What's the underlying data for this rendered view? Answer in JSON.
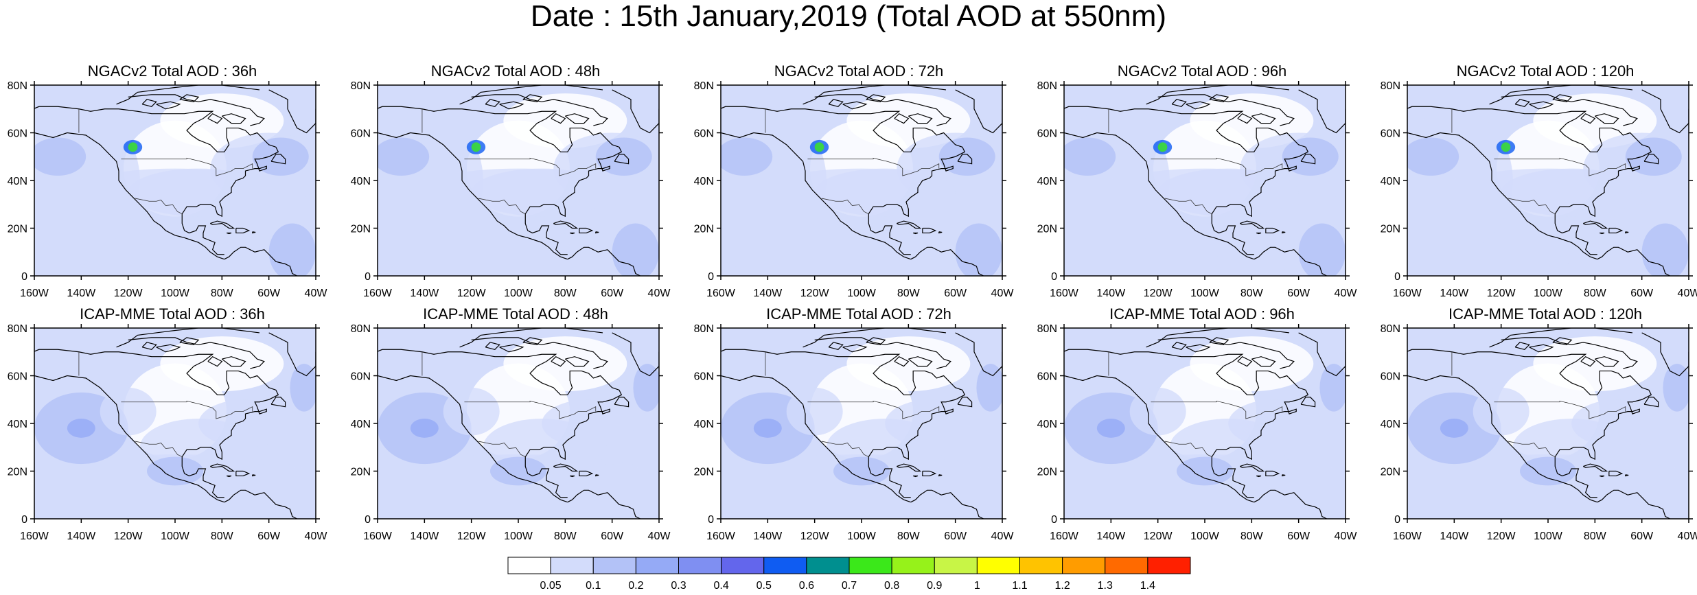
{
  "title": "Date : 15th January,2019 (Total AOD at 550nm)",
  "axes": {
    "x_ticks": [
      "160W",
      "140W",
      "120W",
      "100W",
      "80W",
      "60W",
      "40W"
    ],
    "y_ticks": [
      "80N",
      "60N",
      "40N",
      "20N",
      "0"
    ],
    "lon_range": [
      -160,
      -40
    ],
    "lat_range": [
      0,
      80
    ]
  },
  "panels": [
    {
      "title": "NGACv2 Total AOD : 36h",
      "row": 0,
      "col": 0,
      "model": "ngac"
    },
    {
      "title": "NGACv2 Total AOD : 48h",
      "row": 0,
      "col": 1,
      "model": "ngac"
    },
    {
      "title": "NGACv2 Total AOD : 72h",
      "row": 0,
      "col": 2,
      "model": "ngac"
    },
    {
      "title": "NGACv2 Total AOD : 96h",
      "row": 0,
      "col": 3,
      "model": "ngac"
    },
    {
      "title": "NGACv2 Total AOD : 120h",
      "row": 0,
      "col": 4,
      "model": "ngac"
    },
    {
      "title": "ICAP-MME Total AOD : 36h",
      "row": 1,
      "col": 0,
      "model": "icap"
    },
    {
      "title": "ICAP-MME Total AOD : 48h",
      "row": 1,
      "col": 1,
      "model": "icap"
    },
    {
      "title": "ICAP-MME Total AOD : 72h",
      "row": 1,
      "col": 2,
      "model": "icap"
    },
    {
      "title": "ICAP-MME Total AOD : 96h",
      "row": 1,
      "col": 3,
      "model": "icap"
    },
    {
      "title": "ICAP-MME Total AOD : 120h",
      "row": 1,
      "col": 4,
      "model": "icap"
    }
  ],
  "colorbar": {
    "labels": [
      "0.05",
      "0.1",
      "0.2",
      "0.3",
      "0.4",
      "0.5",
      "0.6",
      "0.7",
      "0.8",
      "0.9",
      "1",
      "1.1",
      "1.2",
      "1.3",
      "1.4"
    ],
    "colors": [
      "#ffffff",
      "#d3dcfb",
      "#b3c2f7",
      "#95aaf6",
      "#7f8ff2",
      "#6366ec",
      "#0f5cf2",
      "#008f8f",
      "#3be81a",
      "#96f21a",
      "#c8f546",
      "#ffff00",
      "#ffc300",
      "#ff9c00",
      "#ff6a00",
      "#ff2000"
    ]
  }
}
